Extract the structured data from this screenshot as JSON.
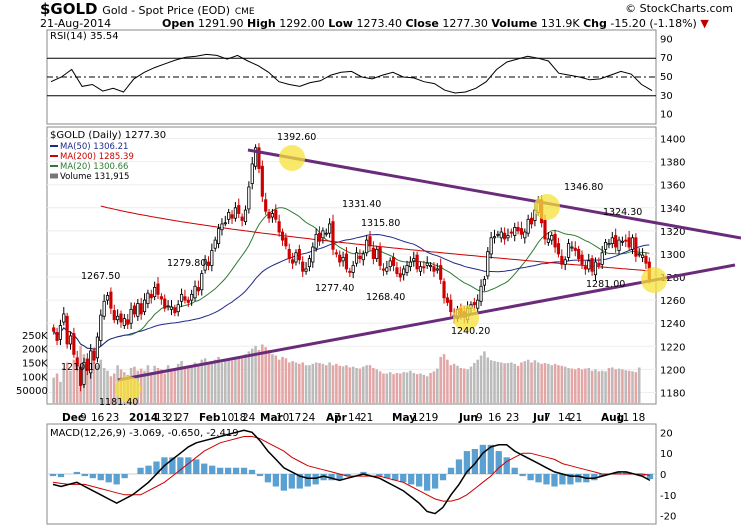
{
  "header": {
    "symbol": "$GOLD",
    "name": "Gold - Spot Price (EOD)",
    "exchange": "CME",
    "date": "21-Aug-2014",
    "open_label": "Open",
    "open": "1291.90",
    "high_label": "High",
    "high": "1292.00",
    "low_label": "Low",
    "low": "1273.40",
    "close_label": "Close",
    "close": "1277.30",
    "volume_label": "Volume",
    "volume": "131.9K",
    "chg_label": "Chg",
    "chg": "-15.20 (-1.18%)",
    "brand": "© StockCharts.com"
  },
  "colors": {
    "up": "#000000",
    "down": "#cc0000",
    "ma50": "#1f2a8c",
    "ma200": "#cc0000",
    "ma20": "#2e7d32",
    "trendline": "#6a2c7a",
    "highlight": "#f7e13a",
    "volume": "#bbbbbb",
    "rsi": "#000000",
    "macd": "#000000",
    "signal": "#cc0000",
    "histogram": "#3d8fc8"
  },
  "chart_data": [
    {
      "type": "line",
      "title": "RSI(14) 35.54",
      "y_ticks": [
        "90",
        "70",
        "50",
        "30",
        "10"
      ],
      "ylim": [
        0,
        100
      ],
      "reference_lines": [
        70,
        50,
        30
      ],
      "series": [
        {
          "name": "RSI(14)",
          "values": [
            45,
            50,
            58,
            40,
            42,
            35,
            38,
            34,
            48,
            55,
            60,
            64,
            68,
            71,
            72,
            74,
            73,
            69,
            73,
            67,
            62,
            55,
            45,
            42,
            40,
            44,
            46,
            52,
            55,
            56,
            50,
            48,
            52,
            55,
            50,
            49,
            45,
            43,
            36,
            33,
            34,
            38,
            45,
            58,
            66,
            69,
            72,
            70,
            67,
            54,
            52,
            50,
            47,
            48,
            52,
            56,
            53,
            42,
            35.54
          ]
        }
      ]
    },
    {
      "type": "candlestick",
      "title": "$GOLD (Daily) 1277.30",
      "legend": [
        "MA(50) 1306.21",
        "MA(200) 1285.39",
        "MA(20) 1300.66",
        "Volume 131,915"
      ],
      "legend_placement": "top-left",
      "x_ticks": [
        "Dec",
        "9",
        "16",
        "23",
        "2014",
        "13",
        "21",
        "27",
        "Feb",
        "10",
        "18",
        "24",
        "Mar",
        "10",
        "17",
        "24",
        "Apr",
        "7",
        "14",
        "21",
        "May",
        "12",
        "19",
        "Jun",
        "9",
        "16",
        "23",
        "Jul",
        "7",
        "14",
        "21",
        "Aug",
        "11",
        "18"
      ],
      "y_ticks": [
        "1400",
        "1380",
        "1360",
        "1340",
        "1320",
        "1300",
        "1280",
        "1260",
        "1240",
        "1220",
        "1200",
        "1180"
      ],
      "ylim": [
        1170,
        1410
      ],
      "volume_ticks": [
        "250K",
        "200K",
        "150K",
        "100K",
        "50000"
      ],
      "annotations": [
        "1392.60",
        "1331.40",
        "1315.80",
        "1346.80",
        "1324.30",
        "1279.80",
        "1277.40",
        "1268.40",
        "1267.50",
        "1281.00",
        "1240.20",
        "1210.10",
        "1181.40"
      ],
      "close": [
        1233,
        1225,
        1238,
        1248,
        1222,
        1229,
        1213,
        1203,
        1186,
        1206,
        1199,
        1216,
        1208,
        1228,
        1247,
        1259,
        1264,
        1253,
        1243,
        1246,
        1241,
        1244,
        1239,
        1252,
        1248,
        1257,
        1248,
        1260,
        1266,
        1262,
        1271,
        1265,
        1261,
        1253,
        1255,
        1254,
        1249,
        1256,
        1265,
        1260,
        1258,
        1265,
        1272,
        1268,
        1283,
        1295,
        1290,
        1303,
        1312,
        1322,
        1326,
        1327,
        1336,
        1331,
        1340,
        1335,
        1329,
        1338,
        1358,
        1378,
        1392,
        1374,
        1350,
        1337,
        1331,
        1335,
        1330,
        1319,
        1312,
        1307,
        1296,
        1292,
        1301,
        1295,
        1285,
        1287,
        1296,
        1306,
        1317,
        1311,
        1320,
        1318,
        1326,
        1304,
        1300,
        1293,
        1297,
        1287,
        1284,
        1290,
        1301,
        1296,
        1300,
        1312,
        1307,
        1296,
        1304,
        1290,
        1286,
        1288,
        1294,
        1290,
        1283,
        1280,
        1287,
        1290,
        1293,
        1296,
        1287,
        1289,
        1288,
        1292,
        1290,
        1285,
        1287,
        1278,
        1262,
        1258,
        1250,
        1245,
        1252,
        1247,
        1245,
        1253,
        1256,
        1256,
        1260,
        1272,
        1278,
        1302,
        1314,
        1315,
        1317,
        1319,
        1313,
        1316,
        1318,
        1323,
        1320,
        1317,
        1319,
        1330,
        1326,
        1338,
        1347,
        1327,
        1313,
        1313,
        1316,
        1306,
        1300,
        1291,
        1295,
        1309,
        1306,
        1303,
        1296,
        1291,
        1287,
        1294,
        1285,
        1293,
        1290,
        1301,
        1310,
        1309,
        1314,
        1306,
        1312,
        1311,
        1311,
        1306,
        1314,
        1298,
        1300,
        1299,
        1292,
        1277.3
      ],
      "volume_k": [
        95,
        110,
        80,
        130,
        150,
        120,
        160,
        140,
        210,
        180,
        120,
        135,
        150,
        140,
        160,
        130,
        120,
        100,
        110,
        140,
        125,
        115,
        105,
        130,
        135,
        120,
        128,
        120,
        140,
        115,
        138,
        130,
        125,
        110,
        140,
        128,
        130,
        145,
        155,
        132,
        135,
        140,
        150,
        145,
        160,
        165,
        150,
        145,
        160,
        170,
        150,
        155,
        165,
        158,
        170,
        170,
        165,
        180,
        190,
        200,
        210,
        195,
        215,
        205,
        195,
        180,
        175,
        160,
        170,
        165,
        150,
        155,
        150,
        145,
        150,
        140,
        140,
        145,
        150,
        148,
        145,
        140,
        150,
        140,
        145,
        138,
        136,
        140,
        132,
        135,
        130,
        128,
        135,
        140,
        140,
        130,
        125,
        118,
        110,
        110,
        115,
        108,
        112,
        110,
        115,
        114,
        120,
        112,
        108,
        110,
        105,
        100,
        112,
        118,
        128,
        170,
        180,
        160,
        140,
        145,
        138,
        130,
        128,
        125,
        135,
        148,
        160,
        175,
        190,
        168,
        158,
        155,
        152,
        150,
        147,
        148,
        150,
        145,
        138,
        150,
        155,
        160,
        150,
        158,
        150,
        145,
        148,
        145,
        140,
        145,
        140,
        138,
        135,
        130,
        128,
        125,
        130,
        125,
        128,
        130,
        120,
        125,
        118,
        120,
        118,
        130,
        132,
        125,
        128,
        125,
        122,
        120,
        118,
        115,
        131.9
      ]
    },
    {
      "type": "line",
      "title": "MACD(12,26,9) -3.069, -0.650, -2.419",
      "y_ticks": [
        "20",
        "10",
        "0",
        "-10",
        "-20"
      ],
      "ylim": [
        -24,
        24
      ],
      "series": [
        {
          "name": "MACD(12,26,9)",
          "values": [
            -5,
            -6,
            -5,
            -4,
            -6,
            -8,
            -10,
            -12,
            -14,
            -12,
            -10,
            -7,
            -4,
            0,
            4,
            7,
            10,
            13,
            15,
            16,
            17,
            18,
            19,
            20,
            21,
            20,
            16,
            11,
            7,
            3,
            1,
            -1,
            -2,
            -2,
            -1,
            -2,
            -3,
            -2,
            -1,
            0,
            -1,
            -2,
            -4,
            -6,
            -8,
            -11,
            -14,
            -18,
            -19,
            -16,
            -10,
            -5,
            1,
            5,
            10,
            13,
            14,
            14,
            11,
            9,
            7,
            5,
            3,
            1,
            0,
            -1,
            -1,
            -2,
            -2,
            -1,
            0,
            1,
            1,
            0,
            -1,
            -3.069
          ]
        },
        {
          "name": "Signal",
          "values": [
            -4,
            -4.5,
            -5,
            -5,
            -5,
            -6,
            -7,
            -8,
            -9,
            -10,
            -10,
            -10,
            -8,
            -6,
            -4,
            -1,
            2,
            5,
            8,
            11,
            13,
            15,
            16,
            17,
            18,
            18,
            17,
            15,
            13,
            11,
            8,
            6,
            4,
            3,
            2,
            1,
            0,
            -1,
            -1,
            -1,
            -1,
            -1,
            -2,
            -3,
            -4,
            -6,
            -8,
            -10,
            -12,
            -13,
            -13,
            -12,
            -10,
            -7,
            -4,
            -1,
            3,
            6,
            8,
            10,
            10,
            9,
            8,
            7,
            5,
            4,
            3,
            2,
            1,
            0,
            0,
            0,
            0,
            0,
            0,
            -0.65
          ]
        },
        {
          "name": "Histogram",
          "values": [
            -1,
            -1.5,
            0,
            1,
            -1,
            -2,
            -3,
            -4,
            -5,
            -2,
            0,
            3,
            4,
            6,
            8,
            8,
            8,
            8,
            7,
            5,
            4,
            3,
            3,
            3,
            3,
            2,
            -1,
            -4,
            -6,
            -8,
            -7,
            -7,
            -6,
            -5,
            -3,
            -3,
            -3,
            -1,
            0,
            1,
            0,
            -1,
            -2,
            -3,
            -4,
            -5,
            -6,
            -8,
            -7,
            -3,
            3,
            7,
            11,
            12,
            14,
            14,
            11,
            8,
            3,
            -1,
            -3,
            -4,
            -5,
            -6,
            -5,
            -5,
            -4,
            -4,
            -3,
            -1,
            0,
            1,
            1,
            0,
            -1,
            -2.419
          ]
        }
      ]
    }
  ]
}
